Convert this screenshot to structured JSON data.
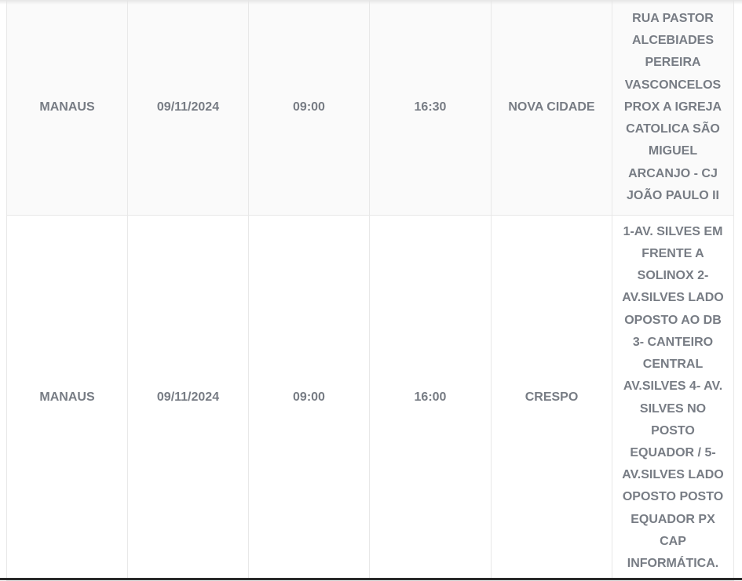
{
  "table": {
    "rows": [
      {
        "city": "MANAUS",
        "date": "09/11/2024",
        "start": "09:00",
        "end": "16:30",
        "neighborhood": "NOVA CIDADE",
        "address": "RUA PASTOR ALCEBIADES PEREIRA VASCONCELOS PROX A IGREJA CATOLICA SÃO MIGUEL ARCANJO - CJ JOÃO PAULO II"
      },
      {
        "city": "MANAUS",
        "date": "09/11/2024",
        "start": "09:00",
        "end": "16:00",
        "neighborhood": "CRESPO",
        "address": "1-AV. SILVES EM FRENTE A SOLINOX 2- AV.SILVES LADO OPOSTO AO DB 3- CANTEIRO CENTRAL AV.SILVES 4- AV. SILVES NO POSTO EQUADOR / 5- AV.SILVES LADO OPOSTO POSTO EQUADOR PX CAP INFORMÁTICA."
      }
    ]
  },
  "colors": {
    "text": "#777c84",
    "border": "#e8e8e8",
    "row_alt": "#fafafa"
  }
}
